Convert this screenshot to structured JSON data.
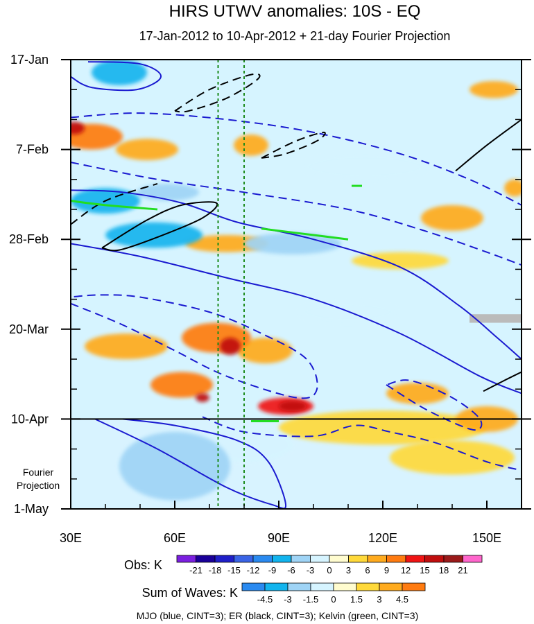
{
  "chart_data": {
    "type": "heatmap",
    "title": "HIRS UTWV anomalies: 10S - EQ",
    "subtitle": "17-Jan-2012 to 10-Apr-2012 + 21-day Fourier Projection",
    "x_axis": {
      "range": [
        30,
        160
      ],
      "units": "degrees East",
      "ticks": [
        30,
        60,
        90,
        120,
        150
      ],
      "tick_labels": [
        "30E",
        "60E",
        "90E",
        "120E",
        "150E"
      ]
    },
    "y_axis": {
      "range_days": [
        0,
        105
      ],
      "ticks_days": [
        0,
        21,
        42,
        63,
        84,
        105
      ],
      "tick_labels": [
        "17-Jan",
        "7-Feb",
        "28-Feb",
        "20-Mar",
        "10-Apr",
        "1-May"
      ],
      "projection_label": "Fourier Projection",
      "observed_end_day": 84
    },
    "reference_lines_longitude": [
      72.5,
      80
    ],
    "anomaly_blobs": [
      {
        "lon": 31,
        "day": 16,
        "level": 15,
        "w": 3,
        "h": 1.5
      },
      {
        "lon": 36,
        "day": 18,
        "level": 9,
        "w": 9,
        "h": 3
      },
      {
        "lon": 52,
        "day": 21,
        "level": 6,
        "w": 9,
        "h": 2.5
      },
      {
        "lon": 82,
        "day": 20,
        "level": 6,
        "w": 5,
        "h": 2.5
      },
      {
        "lon": 152,
        "day": 7,
        "level": 6,
        "w": 7,
        "h": 2
      },
      {
        "lon": 158,
        "day": 30,
        "level": 6,
        "w": 3,
        "h": 2
      },
      {
        "lon": 140,
        "day": 37,
        "level": 6,
        "w": 9,
        "h": 3
      },
      {
        "lon": 75,
        "day": 43,
        "level": 6,
        "w": 12,
        "h": 2
      },
      {
        "lon": 125,
        "day": 47,
        "level": 3,
        "w": 14,
        "h": 2
      },
      {
        "lon": 46,
        "day": 67,
        "level": 6,
        "w": 12,
        "h": 3
      },
      {
        "lon": 72,
        "day": 65,
        "level": 9,
        "w": 10,
        "h": 3.5
      },
      {
        "lon": 76,
        "day": 67,
        "level": 15,
        "w": 3,
        "h": 2
      },
      {
        "lon": 86,
        "day": 68,
        "level": 6,
        "w": 8,
        "h": 3
      },
      {
        "lon": 62,
        "day": 76,
        "level": 9,
        "w": 9,
        "h": 3
      },
      {
        "lon": 68,
        "day": 79,
        "level": 15,
        "w": 2,
        "h": 1
      },
      {
        "lon": 92,
        "day": 81,
        "level": 12,
        "w": 8,
        "h": 2
      },
      {
        "lon": 94,
        "day": 81,
        "level": 15,
        "w": 4,
        "h": 1.2
      },
      {
        "lon": 130,
        "day": 78,
        "level": 6,
        "w": 9,
        "h": 2.5
      },
      {
        "lon": 150,
        "day": 84,
        "level": 6,
        "w": 9,
        "h": 3
      },
      {
        "lon": 120,
        "day": 86,
        "level": 3,
        "w": 30,
        "h": 4
      },
      {
        "lon": 140,
        "day": 93,
        "level": 3,
        "w": 18,
        "h": 4
      },
      {
        "lon": 44,
        "day": 3,
        "level": -9,
        "w": 8,
        "h": 3
      },
      {
        "lon": 40,
        "day": 33,
        "level": -9,
        "w": 10,
        "h": 3
      },
      {
        "lon": 54,
        "day": 41,
        "level": -9,
        "w": 14,
        "h": 3
      },
      {
        "lon": 58,
        "day": 31,
        "level": -6,
        "w": 9,
        "h": 2
      },
      {
        "lon": 94,
        "day": 43,
        "level": -6,
        "w": 14,
        "h": 2.5
      },
      {
        "lon": 115,
        "day": 25,
        "level": -3,
        "w": 18,
        "h": 3
      },
      {
        "lon": 110,
        "day": 59,
        "level": -3,
        "w": 14,
        "h": 2.5
      },
      {
        "lon": 60,
        "day": 95,
        "level": -6,
        "w": 16,
        "h": 8
      },
      {
        "lon": 80,
        "day": 90,
        "level": -3,
        "w": 14,
        "h": 4
      }
    ],
    "mjo_contours_blue": [
      {
        "dashed": false,
        "points": [
          [
            30,
            30.5
          ],
          [
            45,
            31
          ],
          [
            62,
            33.5
          ],
          [
            78,
            38
          ],
          [
            100,
            42
          ],
          [
            125,
            48.5
          ],
          [
            142,
            57.5
          ],
          [
            153,
            65
          ],
          [
            160,
            70
          ]
        ]
      },
      {
        "dashed": false,
        "points": [
          [
            30,
            43
          ],
          [
            50,
            46
          ],
          [
            75,
            51
          ],
          [
            100,
            56
          ],
          [
            125,
            64
          ],
          [
            148,
            74
          ],
          [
            160,
            78
          ]
        ]
      },
      {
        "dashed": false,
        "points": [
          [
            35,
            0.5
          ],
          [
            50,
            1
          ],
          [
            56,
            4
          ],
          [
            49,
            7
          ],
          [
            36,
            6.5
          ],
          [
            30,
            4
          ]
        ]
      },
      {
        "dashed": false,
        "points": [
          [
            37,
            84
          ],
          [
            55,
            91
          ],
          [
            75,
            100
          ],
          [
            88,
            104
          ],
          [
            92,
            104
          ],
          [
            87,
            94
          ],
          [
            78,
            89
          ],
          [
            60,
            85.5
          ],
          [
            45,
            84
          ]
        ]
      },
      {
        "dashed": true,
        "points": [
          [
            30,
            13.5
          ],
          [
            50,
            12.5
          ],
          [
            75,
            14
          ],
          [
            100,
            17
          ],
          [
            125,
            22
          ],
          [
            145,
            28
          ],
          [
            160,
            34
          ]
        ]
      },
      {
        "dashed": true,
        "points": [
          [
            30,
            24
          ],
          [
            55,
            28
          ],
          [
            80,
            31
          ],
          [
            110,
            35
          ],
          [
            132,
            40
          ],
          [
            150,
            45
          ],
          [
            160,
            48
          ]
        ]
      },
      {
        "dashed": true,
        "points": [
          [
            30,
            57
          ],
          [
            45,
            62
          ],
          [
            60,
            68
          ],
          [
            75,
            74
          ],
          [
            95,
            79
          ],
          [
            101,
            77
          ],
          [
            98,
            70
          ],
          [
            85,
            64
          ],
          [
            70,
            59
          ],
          [
            50,
            55.5
          ],
          [
            38,
            55
          ],
          [
            30,
            55.5
          ]
        ]
      },
      {
        "dashed": true,
        "points": [
          [
            68,
            83.5
          ],
          [
            80,
            87
          ],
          [
            100,
            88
          ],
          [
            112,
            85.5
          ],
          [
            122,
            87
          ],
          [
            135,
            89.5
          ],
          [
            150,
            94
          ],
          [
            160,
            96
          ]
        ]
      },
      {
        "dashed": true,
        "points": [
          [
            121,
            76
          ],
          [
            133,
            82
          ],
          [
            146,
            86.5
          ],
          [
            148,
            84
          ],
          [
            140,
            79
          ],
          [
            128,
            75
          ],
          [
            121,
            76
          ]
        ]
      }
    ],
    "er_contours_black": [
      {
        "dashed": false,
        "points": [
          [
            39,
            44
          ],
          [
            52,
            37.5
          ],
          [
            62,
            34
          ],
          [
            72,
            33.5
          ],
          [
            68,
            37
          ],
          [
            55,
            41.5
          ],
          [
            44,
            44.5
          ],
          [
            39,
            44
          ]
        ]
      },
      {
        "dashed": false,
        "points": [
          [
            141,
            26
          ],
          [
            150,
            20
          ],
          [
            160,
            14
          ]
        ]
      },
      {
        "dashed": false,
        "points": [
          [
            149,
            77.5
          ],
          [
            155,
            75
          ],
          [
            160,
            73
          ]
        ]
      },
      {
        "dashed": true,
        "points": [
          [
            60,
            12
          ],
          [
            70,
            7
          ],
          [
            82,
            3.5
          ],
          [
            84,
            4.5
          ],
          [
            75,
            9
          ],
          [
            64,
            12
          ],
          [
            60,
            12
          ]
        ]
      },
      {
        "dashed": true,
        "points": [
          [
            30,
            38.5
          ],
          [
            40,
            33
          ],
          [
            55,
            29
          ]
        ]
      },
      {
        "dashed": true,
        "points": [
          [
            85,
            23
          ],
          [
            95,
            19
          ],
          [
            103,
            17
          ],
          [
            101,
            19
          ],
          [
            92,
            22
          ],
          [
            85,
            23
          ]
        ]
      }
    ],
    "kelvin_contours_green": [
      {
        "dashed": false,
        "points": [
          [
            30,
            33
          ],
          [
            40,
            34
          ],
          [
            55,
            35
          ]
        ]
      },
      {
        "dashed": false,
        "points": [
          [
            85,
            39.5
          ],
          [
            95,
            40.5
          ],
          [
            110,
            42
          ]
        ]
      },
      {
        "dashed": false,
        "points": [
          [
            111,
            29.5
          ],
          [
            114,
            29.5
          ]
        ]
      },
      {
        "dashed": false,
        "points": [
          [
            82,
            84.5
          ],
          [
            90,
            84.5
          ]
        ]
      }
    ],
    "missing_data_patch": {
      "lon": [
        145,
        160
      ],
      "day": [
        59.5,
        61.5
      ]
    },
    "legend_obs": {
      "label": "Obs: K",
      "ticks": [
        "-21",
        "-18",
        "-15",
        "-12",
        "-9",
        "-6",
        "-3",
        "0",
        "3",
        "6",
        "9",
        "12",
        "15",
        "18",
        "21"
      ],
      "colors": [
        "#7b1fe0",
        "#1a0099",
        "#1f1fc8",
        "#3a64e6",
        "#2a8af0",
        "#12b4ee",
        "#9fd4f6",
        "#d6f4ff",
        "#fffccf",
        "#ffd93a",
        "#ffab1e",
        "#ff7b10",
        "#f01414",
        "#c00e0e",
        "#9a1a1a",
        "#ff66cc"
      ]
    },
    "legend_waves": {
      "label": "Sum of Waves: K",
      "ticks": [
        "-4.5",
        "-3",
        "-1.5",
        "0",
        "1.5",
        "3",
        "4.5"
      ],
      "colors": [
        "#2a8af0",
        "#12b4ee",
        "#9fd4f6",
        "#d6f4ff",
        "#fffccf",
        "#ffd93a",
        "#ffab1e",
        "#ff7b10"
      ]
    },
    "footnote": "MJO (blue, CINT=3); ER (black, CINT=3); Kelvin (green, CINT=3)"
  }
}
